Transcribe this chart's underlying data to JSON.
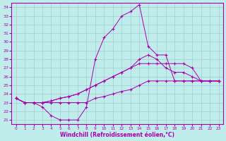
{
  "xlabel": "Windchill (Refroidissement éolien,°C)",
  "bg_color": "#c0ecec",
  "line_color": "#aa00aa",
  "xlim": [
    -0.5,
    23.5
  ],
  "ylim": [
    20.5,
    34.5
  ],
  "xticks": [
    0,
    1,
    2,
    3,
    4,
    5,
    6,
    7,
    8,
    9,
    10,
    11,
    12,
    13,
    14,
    15,
    16,
    17,
    18,
    19,
    20,
    21,
    22,
    23
  ],
  "yticks": [
    21,
    22,
    23,
    24,
    25,
    26,
    27,
    28,
    29,
    30,
    31,
    32,
    33,
    34
  ],
  "grid_color": "#9ecece",
  "line1_x": [
    0,
    1,
    2,
    3,
    4,
    5,
    6,
    7,
    8,
    9,
    10,
    11,
    12,
    13,
    14,
    15,
    16,
    17,
    18,
    19,
    20,
    21,
    22,
    23
  ],
  "line1_y": [
    23.5,
    23.0,
    23.0,
    22.5,
    21.5,
    21.0,
    21.0,
    21.0,
    22.5,
    28.0,
    30.5,
    31.5,
    33.0,
    33.5,
    34.3,
    29.5,
    28.5,
    28.5,
    25.5,
    25.5,
    25.5,
    25.5,
    25.5,
    25.5
  ],
  "line2_x": [
    0,
    1,
    2,
    3,
    4,
    5,
    6,
    7,
    8,
    9,
    10,
    11,
    12,
    13,
    14,
    15,
    16,
    17,
    18,
    19,
    20,
    21,
    22,
    23
  ],
  "line2_y": [
    23.5,
    23.0,
    23.0,
    23.0,
    23.2,
    23.5,
    23.7,
    24.0,
    24.5,
    25.0,
    25.5,
    26.0,
    26.5,
    27.0,
    27.5,
    27.5,
    27.5,
    27.5,
    27.5,
    27.5,
    27.0,
    25.5,
    25.5,
    25.5
  ],
  "line3_x": [
    0,
    1,
    2,
    3,
    4,
    5,
    6,
    7,
    8,
    9,
    10,
    11,
    12,
    13,
    14,
    15,
    16,
    17,
    18,
    19,
    20,
    21,
    22,
    23
  ],
  "line3_y": [
    23.5,
    23.0,
    23.0,
    23.0,
    23.0,
    23.0,
    23.0,
    23.0,
    23.0,
    23.5,
    23.7,
    24.0,
    24.3,
    24.5,
    25.0,
    25.5,
    25.5,
    25.5,
    25.5,
    25.5,
    25.5,
    25.5,
    25.5,
    25.5
  ],
  "line4_x": [
    0,
    1,
    2,
    3,
    4,
    5,
    6,
    7,
    8,
    9,
    10,
    11,
    12,
    13,
    14,
    15,
    16,
    17,
    18,
    19,
    20,
    21,
    22,
    23
  ],
  "line4_y": [
    23.5,
    23.0,
    23.0,
    23.0,
    23.2,
    23.5,
    23.7,
    24.0,
    24.5,
    25.0,
    25.5,
    26.0,
    26.5,
    27.0,
    28.0,
    28.5,
    28.0,
    27.0,
    26.5,
    26.5,
    26.0,
    25.5,
    25.5,
    25.5
  ]
}
